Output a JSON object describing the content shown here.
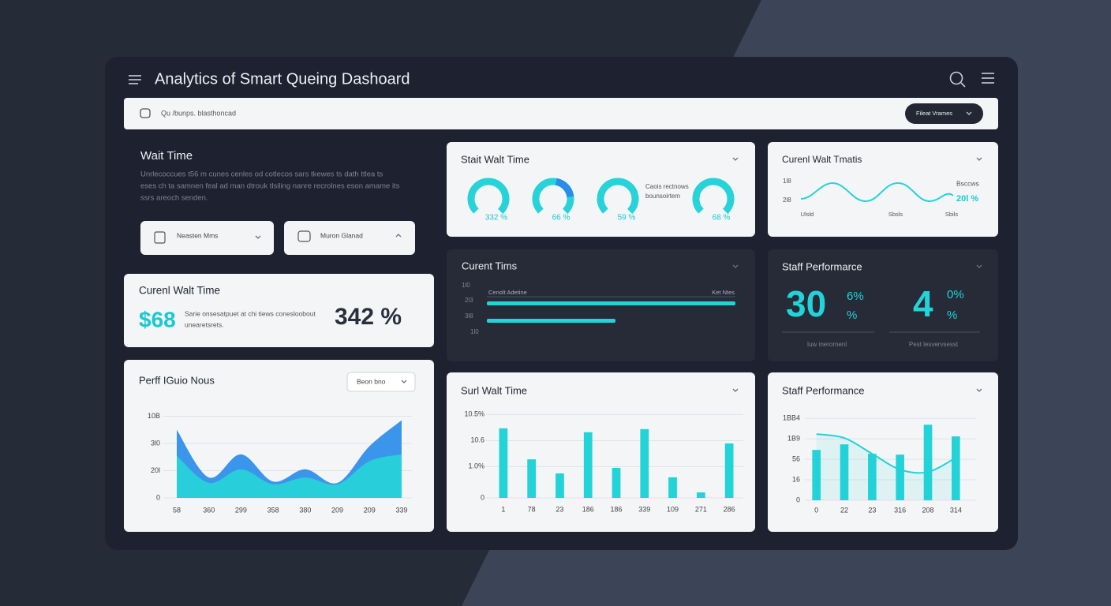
{
  "header": {
    "title": "Analytics of Smart Queing Dashoard"
  },
  "search": {
    "placeholder": "Qu /bunps. blasthoncad",
    "button": "Fileat Vrames"
  },
  "wait_time": {
    "title": "Wait Time",
    "description": [
      "Unrlecoccues t56 m cunes cenles od cotlecos sars tkewes ts dath ttlea ts",
      "eses ch ta samnen feal ad man dtrouk tlsiling nanre recrolnes eson amame its",
      "ssrs areoch senden."
    ],
    "filters": [
      "Neasten Mms",
      "Muron Glanad"
    ]
  },
  "current_wait": {
    "title": "Curenl Walt Time",
    "amount": "$68",
    "note": [
      "Sarie onsesatpuet at chi tiews conesloobout",
      "unearetsrets."
    ],
    "percent": "342 %"
  },
  "gauges": {
    "title": "Stait Walt Time",
    "labels": [
      "332 %",
      "66 %",
      "59 %",
      "68 %"
    ],
    "note": [
      "Caois rectnows",
      "bounsoirtem"
    ]
  },
  "trend": {
    "title": "Curenl Walt Tmatis",
    "yticks": [
      "1l8",
      "2l8"
    ],
    "xticks": [
      "Ulsld",
      "Sbsls",
      "Sbils"
    ],
    "note": "Bsccws",
    "value": "20l %"
  },
  "current_times": {
    "title": "Curent Tims",
    "legend": [
      "Cenolt Adetine",
      "Ket Ntes"
    ],
    "yticks": [
      "1l0",
      "2l3",
      "3l8",
      "1l0"
    ]
  },
  "staff_kpi": {
    "title": "Staff Performarce",
    "kpis": [
      {
        "big": "30",
        "small": "6%",
        "unit": "%",
        "label": "Iuw inerornenl"
      },
      {
        "big": "4",
        "small": "0%",
        "unit": "%",
        "label": "Pest lesvervsesst"
      }
    ]
  },
  "chart_data": [
    {
      "type": "area",
      "title": "Perff IGuio Nous",
      "dropdown": "Beon bno",
      "categories": [
        "58",
        "360",
        "299",
        "358",
        "380",
        "209",
        "209",
        "339"
      ],
      "series": [
        {
          "color": "#2a8de9",
          "values": [
            2.5,
            0.75,
            1.6,
            0.6,
            1.05,
            0.55,
            1.9,
            2.85
          ]
        },
        {
          "color": "#27d3d8",
          "values": [
            1.55,
            0.55,
            1.05,
            0.5,
            0.75,
            0.5,
            1.35,
            1.6
          ]
        }
      ],
      "ylim": [
        0,
        3.1
      ],
      "yticks": [
        0,
        {
          "value": 1,
          "label": "20l"
        },
        {
          "value": 2,
          "label": "3l0"
        },
        {
          "value": 3,
          "label": "10B"
        }
      ],
      "grid": true
    },
    {
      "type": "bar",
      "title": "Surl Walt Time",
      "categories": [
        "1",
        "78",
        "23",
        "186",
        "186",
        "339",
        "109",
        "271",
        "286"
      ],
      "values": [
        2.67,
        1.48,
        0.94,
        2.52,
        1.15,
        2.64,
        0.79,
        0.21,
        2.09
      ],
      "color": "#22d3d8",
      "ylim": [
        0,
        3.3
      ],
      "yticks": [
        0,
        {
          "value": 1.2,
          "label": "1.0%"
        },
        {
          "value": 2.2,
          "label": "10.6"
        },
        {
          "value": 3.2,
          "label": "10.5%"
        }
      ],
      "grid": true
    },
    {
      "type": "combo",
      "title": "Staff Performance",
      "categories": [
        "0",
        "22",
        "23",
        "316",
        "208",
        "314"
      ],
      "series": [
        {
          "type": "bar",
          "color": "#22d3d8",
          "values": [
            2.46,
            2.73,
            2.27,
            2.23,
            3.69,
            3.12
          ]
        },
        {
          "type": "line",
          "color": "#22d3d8",
          "values": [
            3.23,
            3.04,
            2.27,
            1.5,
            1.38,
            2.08
          ]
        }
      ],
      "ylim": [
        0,
        4.2
      ],
      "yticks": [
        0,
        {
          "value": 1,
          "label": "16"
        },
        {
          "value": 2,
          "label": "56"
        },
        {
          "value": 3,
          "label": "1B9"
        },
        {
          "value": 4,
          "label": "1BB4"
        }
      ],
      "grid": true
    }
  ]
}
